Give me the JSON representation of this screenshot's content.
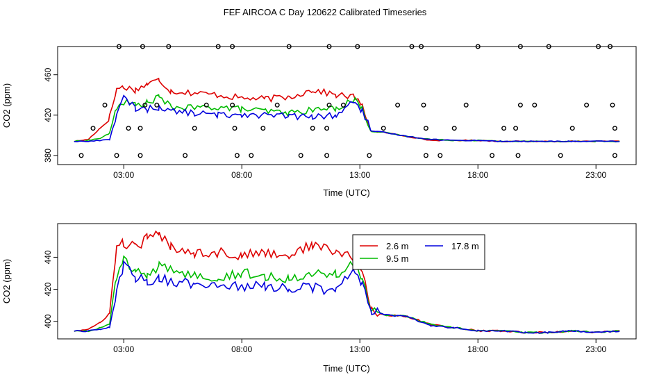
{
  "title": "FEF AIRCOA C  Day 120622  Calibrated Timeseries",
  "colors": {
    "red": "#dd0000",
    "green": "#00bb00",
    "blue": "#0000dd",
    "axis": "#000000"
  },
  "chart_data": [
    {
      "type": "line+scatter",
      "xlabel": "Time (UTC)",
      "ylabel": "CO2 (ppm)",
      "xlim": [
        0.2,
        24.7
      ],
      "ylim": [
        371,
        488
      ],
      "xticks": [
        3,
        8,
        13,
        18,
        23
      ],
      "xtick_labels": [
        "03:00",
        "08:00",
        "13:00",
        "18:00",
        "23:00"
      ],
      "yticks": [
        380,
        420,
        460
      ],
      "ytick_labels": [
        "380",
        "420",
        "460"
      ],
      "series": [
        {
          "name": "2.6 m",
          "color": "red",
          "x": [
            0.9,
            1.5,
            2.0,
            2.4,
            2.7,
            3.0,
            3.5,
            4.0,
            4.5,
            5.0,
            6.0,
            7.0,
            8.0,
            9.0,
            10.0,
            11.0,
            12.0,
            12.8,
            13.1,
            13.5,
            14.0,
            15.0,
            16.0,
            17.0,
            18.0,
            19.0,
            20.0,
            21.0,
            22.0,
            23.0,
            24.0
          ],
          "values": [
            394,
            396,
            407,
            418,
            446,
            448,
            445,
            451,
            455,
            444,
            442,
            440,
            437,
            436,
            438,
            445,
            440,
            438,
            428,
            404,
            403,
            399,
            395,
            395,
            395,
            394,
            394,
            394,
            394,
            394,
            394
          ]
        },
        {
          "name": "9.5 m",
          "color": "green",
          "x": [
            0.9,
            1.5,
            2.0,
            2.4,
            2.7,
            3.0,
            3.5,
            4.0,
            4.5,
            5.0,
            6.0,
            7.0,
            8.0,
            9.0,
            10.0,
            11.0,
            12.0,
            12.8,
            13.1,
            13.5,
            14.0,
            15.0,
            16.0,
            17.0,
            18.0,
            19.0,
            20.0,
            21.0,
            22.0,
            23.0,
            24.0
          ],
          "values": [
            394,
            395,
            397,
            402,
            428,
            433,
            430,
            432,
            438,
            428,
            427,
            428,
            426,
            424,
            422,
            425,
            427,
            436,
            426,
            404,
            403,
            399,
            396,
            395,
            395,
            394,
            394,
            394,
            394,
            394,
            394
          ]
        },
        {
          "name": "17.8 m",
          "color": "blue",
          "x": [
            0.9,
            1.5,
            2.0,
            2.4,
            2.7,
            3.0,
            3.5,
            4.0,
            4.5,
            5.0,
            6.0,
            7.0,
            8.0,
            9.0,
            10.0,
            11.0,
            12.0,
            12.8,
            13.1,
            13.5,
            14.0,
            15.0,
            16.0,
            17.0,
            18.0,
            19.0,
            20.0,
            21.0,
            22.0,
            23.0,
            24.0
          ],
          "values": [
            394,
            394,
            395,
            396,
            420,
            437,
            427,
            426,
            428,
            424,
            422,
            420,
            421,
            420,
            419,
            418,
            420,
            434,
            424,
            404,
            403,
            399,
            396,
            395,
            395,
            394,
            394,
            394,
            394,
            394,
            394
          ]
        }
      ],
      "points": [
        {
          "x": 1.2,
          "y": 380
        },
        {
          "x": 1.7,
          "y": 407
        },
        {
          "x": 2.2,
          "y": 430
        },
        {
          "x": 2.8,
          "y": 488
        },
        {
          "x": 2.7,
          "y": 380
        },
        {
          "x": 3.2,
          "y": 407
        },
        {
          "x": 3.7,
          "y": 407
        },
        {
          "x": 3.7,
          "y": 380
        },
        {
          "x": 3.8,
          "y": 488
        },
        {
          "x": 3.9,
          "y": 430
        },
        {
          "x": 4.4,
          "y": 430
        },
        {
          "x": 4.9,
          "y": 488
        },
        {
          "x": 5.6,
          "y": 380
        },
        {
          "x": 6.0,
          "y": 407
        },
        {
          "x": 6.5,
          "y": 430
        },
        {
          "x": 7.0,
          "y": 488
        },
        {
          "x": 7.6,
          "y": 488
        },
        {
          "x": 7.6,
          "y": 430
        },
        {
          "x": 7.7,
          "y": 407
        },
        {
          "x": 7.8,
          "y": 380
        },
        {
          "x": 8.4,
          "y": 380
        },
        {
          "x": 8.9,
          "y": 407
        },
        {
          "x": 9.5,
          "y": 430
        },
        {
          "x": 10.0,
          "y": 488
        },
        {
          "x": 10.5,
          "y": 380
        },
        {
          "x": 11.0,
          "y": 407
        },
        {
          "x": 11.6,
          "y": 407
        },
        {
          "x": 11.6,
          "y": 380
        },
        {
          "x": 11.7,
          "y": 430
        },
        {
          "x": 11.7,
          "y": 488
        },
        {
          "x": 12.3,
          "y": 430
        },
        {
          "x": 12.9,
          "y": 488
        },
        {
          "x": 13.4,
          "y": 380
        },
        {
          "x": 14.0,
          "y": 407
        },
        {
          "x": 14.6,
          "y": 430
        },
        {
          "x": 15.2,
          "y": 488
        },
        {
          "x": 15.6,
          "y": 488
        },
        {
          "x": 15.7,
          "y": 430
        },
        {
          "x": 15.8,
          "y": 407
        },
        {
          "x": 15.8,
          "y": 380
        },
        {
          "x": 16.4,
          "y": 380
        },
        {
          "x": 17.0,
          "y": 407
        },
        {
          "x": 17.5,
          "y": 430
        },
        {
          "x": 18.0,
          "y": 488
        },
        {
          "x": 18.6,
          "y": 380
        },
        {
          "x": 19.1,
          "y": 407
        },
        {
          "x": 19.6,
          "y": 407
        },
        {
          "x": 19.7,
          "y": 380
        },
        {
          "x": 19.8,
          "y": 430
        },
        {
          "x": 19.8,
          "y": 488
        },
        {
          "x": 20.4,
          "y": 430
        },
        {
          "x": 21.0,
          "y": 488
        },
        {
          "x": 21.5,
          "y": 380
        },
        {
          "x": 22.0,
          "y": 407
        },
        {
          "x": 22.6,
          "y": 430
        },
        {
          "x": 23.1,
          "y": 488
        },
        {
          "x": 23.6,
          "y": 488
        },
        {
          "x": 23.7,
          "y": 430
        },
        {
          "x": 23.8,
          "y": 407
        },
        {
          "x": 23.8,
          "y": 380
        }
      ]
    },
    {
      "type": "line",
      "xlabel": "Time (UTC)",
      "ylabel": "CO2 (ppm)",
      "xlim": [
        0.2,
        24.7
      ],
      "ylim": [
        389,
        461
      ],
      "xticks": [
        3,
        8,
        13,
        18,
        23
      ],
      "xtick_labels": [
        "03:00",
        "08:00",
        "13:00",
        "18:00",
        "23:00"
      ],
      "yticks": [
        400,
        420,
        440
      ],
      "ytick_labels": [
        "400",
        "420",
        "440"
      ],
      "legend": {
        "placement": "top-right",
        "entries": [
          {
            "label": "2.6 m",
            "color": "red"
          },
          {
            "label": "17.8 m",
            "color": "blue"
          },
          {
            "label": "9.5 m",
            "color": "green"
          }
        ]
      },
      "series": [
        {
          "name": "2.6 m",
          "color": "red",
          "x": [
            0.9,
            1.5,
            2.0,
            2.4,
            2.7,
            3.0,
            3.5,
            4.0,
            4.5,
            5.0,
            6.0,
            7.0,
            8.0,
            9.0,
            10.0,
            11.0,
            12.0,
            12.8,
            13.1,
            13.5,
            14.0,
            15.0,
            16.0,
            17.0,
            18.0,
            19.0,
            20.0,
            21.0,
            22.0,
            23.0,
            24.0
          ],
          "values": [
            394,
            395,
            399,
            405,
            446,
            449,
            446,
            452,
            454,
            447,
            443,
            443,
            441,
            443,
            441,
            448,
            443,
            440,
            430,
            407,
            404,
            403,
            398,
            396,
            394,
            394,
            393,
            393,
            394,
            393,
            394
          ]
        },
        {
          "name": "9.5 m",
          "color": "green",
          "x": [
            0.9,
            1.5,
            2.0,
            2.4,
            2.7,
            3.0,
            3.5,
            4.0,
            4.5,
            5.0,
            6.0,
            7.0,
            8.0,
            9.0,
            10.0,
            11.0,
            12.0,
            12.8,
            13.1,
            13.5,
            14.0,
            15.0,
            16.0,
            17.0,
            18.0,
            19.0,
            20.0,
            21.0,
            22.0,
            23.0,
            24.0
          ],
          "values": [
            394,
            394,
            396,
            398,
            428,
            438,
            431,
            428,
            434,
            432,
            429,
            428,
            430,
            428,
            427,
            431,
            429,
            436,
            426,
            407,
            404,
            403,
            398,
            396,
            394,
            394,
            393,
            393,
            394,
            393,
            394
          ]
        },
        {
          "name": "17.8 m",
          "color": "blue",
          "x": [
            0.9,
            1.5,
            2.0,
            2.4,
            2.7,
            3.0,
            3.5,
            4.0,
            4.5,
            5.0,
            6.0,
            7.0,
            8.0,
            9.0,
            10.0,
            11.0,
            12.0,
            12.8,
            13.1,
            13.5,
            14.0,
            15.0,
            16.0,
            17.0,
            18.0,
            19.0,
            20.0,
            21.0,
            22.0,
            23.0,
            24.0
          ],
          "values": [
            394,
            394,
            395,
            396,
            418,
            436,
            427,
            425,
            427,
            425,
            423,
            424,
            422,
            422,
            421,
            421,
            419,
            433,
            424,
            407,
            404,
            403,
            397,
            396,
            394,
            394,
            393,
            393,
            394,
            393,
            394
          ]
        }
      ]
    }
  ]
}
